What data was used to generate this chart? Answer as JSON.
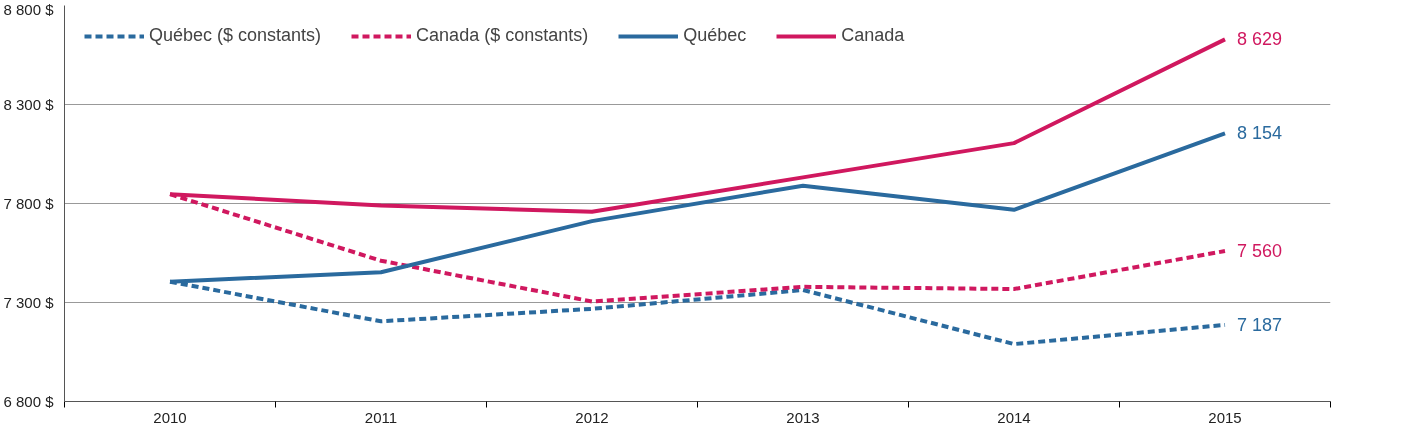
{
  "chart_data": {
    "type": "line",
    "categories": [
      "2010",
      "2011",
      "2012",
      "2013",
      "2014",
      "2015"
    ],
    "series": [
      {
        "name": "Québec ($ constants)",
        "color": "#2a6a9e",
        "line_style": "dashed",
        "values": [
          7405,
          7205,
          7268,
          7363,
          7090,
          7187
        ],
        "value_labels": [
          null,
          null,
          null,
          null,
          null,
          "7 187"
        ]
      },
      {
        "name": "Canada ($ constants)",
        "color": "#d0185f",
        "line_style": "dashed",
        "values": [
          7847,
          7511,
          7305,
          7379,
          7368,
          7560
        ],
        "value_labels": [
          null,
          null,
          null,
          null,
          null,
          "7 560"
        ]
      },
      {
        "name": "Québec",
        "color": "#2a6a9e",
        "line_style": "solid",
        "values": [
          7405,
          7453,
          7711,
          7890,
          7768,
          8154
        ],
        "value_labels": [
          null,
          null,
          null,
          null,
          null,
          "8 154"
        ]
      },
      {
        "name": "Canada",
        "color": "#d0185f",
        "line_style": "solid",
        "values": [
          7847,
          7790,
          7758,
          7932,
          8105,
          8629
        ],
        "value_labels": [
          null,
          null,
          null,
          null,
          null,
          "8 629"
        ]
      }
    ],
    "ylim": [
      6800,
      8800
    ],
    "yticks": [
      {
        "value": 6800,
        "label": "6 800 $"
      },
      {
        "value": 7300,
        "label": "7 300 $"
      },
      {
        "value": 7800,
        "label": "7 800 $"
      },
      {
        "value": 8300,
        "label": "8 300 $"
      },
      {
        "value": 8800,
        "label": "8 800 $"
      }
    ],
    "grid": "y",
    "legend": "top left",
    "marker": "none"
  }
}
